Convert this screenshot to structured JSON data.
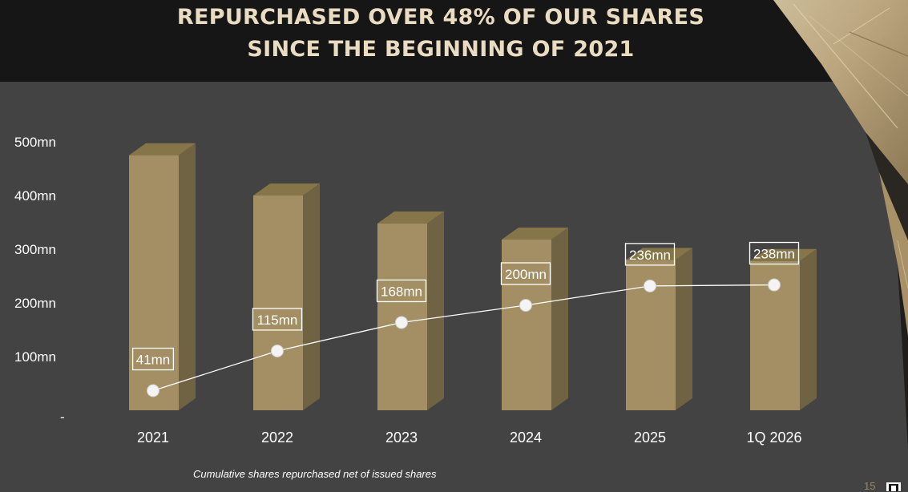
{
  "slide": {
    "title_line1": "REPURCHASED OVER 48% OF OUR SHARES",
    "title_line2": "SINCE THE BEGINNING OF 2021",
    "footnote": "Cumulative shares repurchased net of issued shares",
    "page_number": "15"
  },
  "colors": {
    "background": "#434343",
    "header": "#161616",
    "title": "#e9dcc0",
    "bar_front": "#a38f63",
    "bar_side": "#6f6343",
    "bar_top": "#857548",
    "line": "#ffffff",
    "text": "#ffffff"
  },
  "chart_data": {
    "type": "bar",
    "categories": [
      "2021",
      "2022",
      "2023",
      "2024",
      "2025",
      "1Q 2026"
    ],
    "series": [
      {
        "type": "bar",
        "values": [
          475,
          400,
          348,
          318,
          280,
          278
        ]
      },
      {
        "type": "line",
        "values": [
          41,
          115,
          168,
          200,
          236,
          238
        ],
        "labels": [
          "41mn",
          "115mn",
          "168mn",
          "200mn",
          "236mn",
          "238mn"
        ]
      }
    ],
    "yticks": [
      0,
      100,
      200,
      300,
      400,
      500
    ],
    "ytick_labels": [
      "-",
      "100mn",
      "200mn",
      "300mn",
      "400mn",
      "500mn"
    ],
    "ylim": [
      0,
      500
    ],
    "title": "",
    "xlabel": "",
    "ylabel": "",
    "grid": false,
    "legend": "none"
  }
}
